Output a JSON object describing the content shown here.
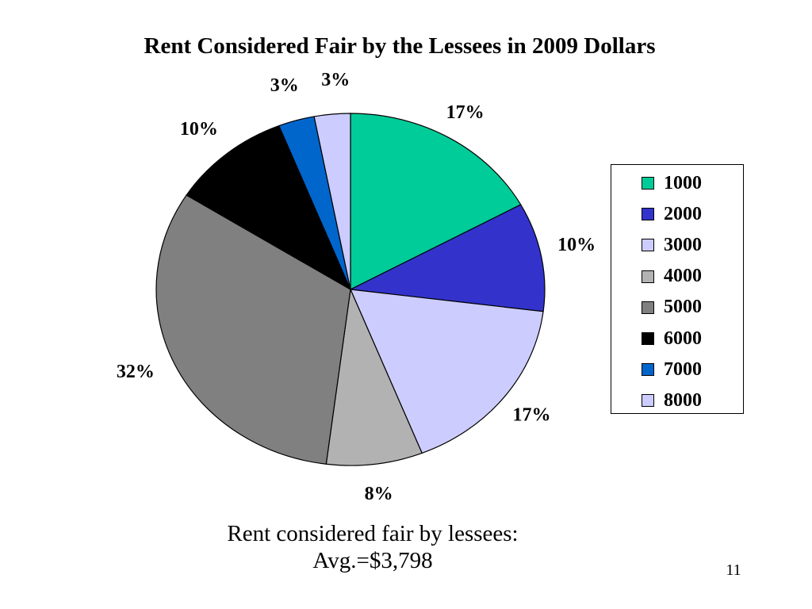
{
  "slide": {
    "title": "Rent Considered Fair by the Lessees in 2009 Dollars",
    "caption_line1": "Rent considered fair by lessees:",
    "caption_line2": "Avg.=$3,798",
    "page_number": "11"
  },
  "chart_data": {
    "type": "pie",
    "title": "Rent Considered Fair by the Lessees in 2009 Dollars",
    "legend_position": "right",
    "slices": [
      {
        "label": "1000",
        "value": 17,
        "display": "17%",
        "color": "#00CC99"
      },
      {
        "label": "2000",
        "value": 10,
        "display": "10%",
        "color": "#3333CC"
      },
      {
        "label": "3000",
        "value": 17,
        "display": "17%",
        "color": "#CCCCFF"
      },
      {
        "label": "4000",
        "value": 8,
        "display": "8%",
        "color": "#B2B2B2"
      },
      {
        "label": "5000",
        "value": 32,
        "display": "32%",
        "color": "#808080"
      },
      {
        "label": "6000",
        "value": 10,
        "display": "10%",
        "color": "#000000"
      },
      {
        "label": "7000",
        "value": 3,
        "display": "3%",
        "color": "#0066CC"
      },
      {
        "label": "8000",
        "value": 3,
        "display": "3%",
        "color": "#CCCCFF"
      }
    ]
  }
}
